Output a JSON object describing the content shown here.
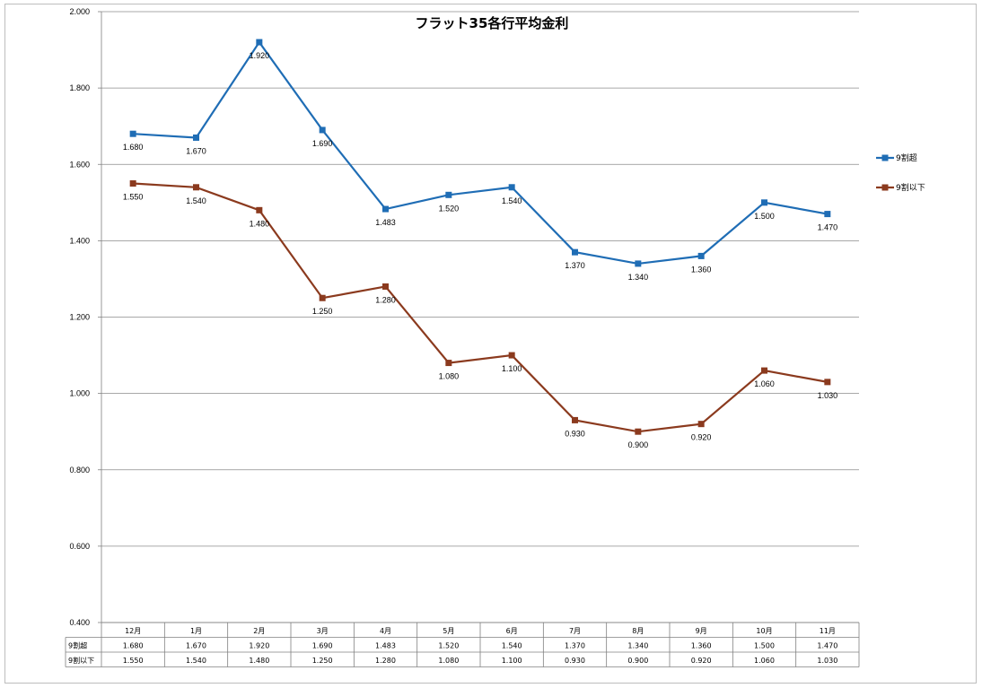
{
  "chart_data": {
    "type": "line",
    "title": "フラット35各行平均金利",
    "categories": [
      "12月",
      "1月",
      "2月",
      "3月",
      "4月",
      "5月",
      "6月",
      "7月",
      "8月",
      "9月",
      "10月",
      "11月"
    ],
    "series": [
      {
        "name": "9割超",
        "color": "#1f6db5",
        "values": [
          1.68,
          1.67,
          1.92,
          1.69,
          1.483,
          1.52,
          1.54,
          1.37,
          1.34,
          1.36,
          1.5,
          1.47
        ],
        "labels": [
          "1.680",
          "1.670",
          "1.920",
          "1.690",
          "1.483",
          "1.520",
          "1.540",
          "1.370",
          "1.340",
          "1.360",
          "1.500",
          "1.470"
        ]
      },
      {
        "name": "9割以下",
        "color": "#8b3a1e",
        "values": [
          1.55,
          1.54,
          1.48,
          1.25,
          1.28,
          1.08,
          1.1,
          0.93,
          0.9,
          0.92,
          1.06,
          1.03
        ],
        "labels": [
          "1.550",
          "1.540",
          "1.480",
          "1.250",
          "1.280",
          "1.080",
          "1.100",
          "0.930",
          "0.900",
          "0.920",
          "1.060",
          "1.030"
        ]
      }
    ],
    "ylim": [
      0.4,
      2.0
    ],
    "yticks": [
      "2.000",
      "1.800",
      "1.600",
      "1.400",
      "1.200",
      "1.000",
      "0.800",
      "0.600",
      "0.400"
    ],
    "grid": true,
    "legend_position": "right",
    "data_table": true
  }
}
